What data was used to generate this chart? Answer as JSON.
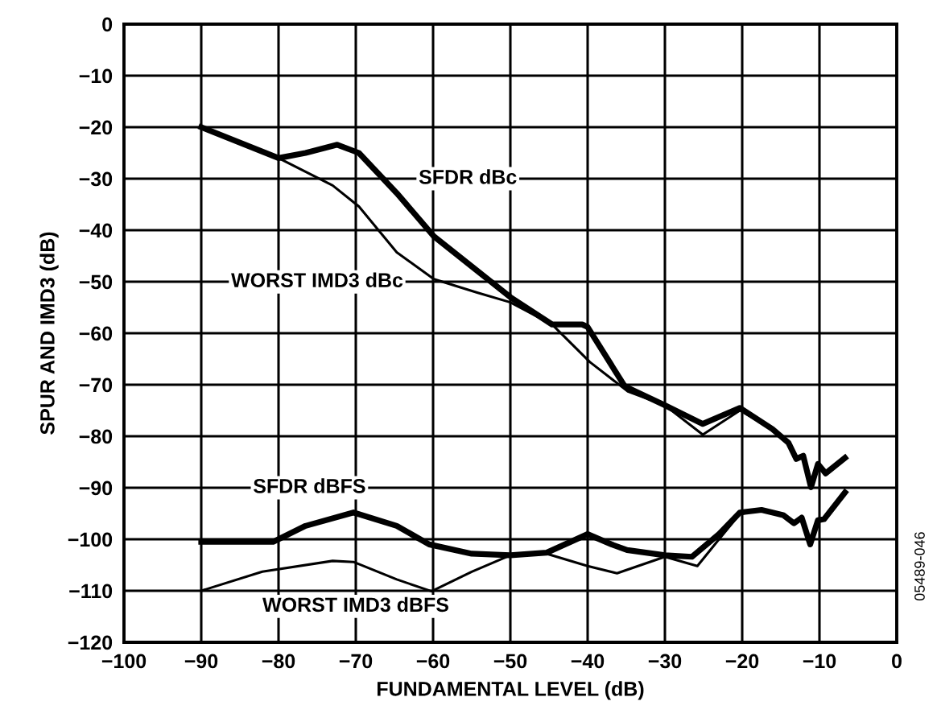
{
  "chart_data": {
    "type": "line",
    "xlabel": "FUNDAMENTAL LEVEL (dB)",
    "ylabel": "SPUR AND IMD3 (dB)",
    "xlim": [
      -100,
      0
    ],
    "ylim": [
      -120,
      0
    ],
    "xticks": [
      {
        "value": -100,
        "label": "−100"
      },
      {
        "value": -90,
        "label": "−90"
      },
      {
        "value": -80,
        "label": "−80"
      },
      {
        "value": -70,
        "label": "−70"
      },
      {
        "value": -60,
        "label": "−60"
      },
      {
        "value": -50,
        "label": "−50"
      },
      {
        "value": -40,
        "label": "−40"
      },
      {
        "value": -30,
        "label": "−30"
      },
      {
        "value": -20,
        "label": "−20"
      },
      {
        "value": -10,
        "label": "−10"
      },
      0
    ],
    "yticks": [
      0,
      {
        "value": -10,
        "label": "−10"
      },
      {
        "value": -20,
        "label": "−20"
      },
      {
        "value": -30,
        "label": "−30"
      },
      {
        "value": -40,
        "label": "−40"
      },
      {
        "value": -50,
        "label": "−50"
      },
      {
        "value": -60,
        "label": "−60"
      },
      {
        "value": -70,
        "label": "−70"
      },
      {
        "value": -80,
        "label": "−80"
      },
      {
        "value": -90,
        "label": "−90"
      },
      {
        "value": -100,
        "label": "−100"
      },
      {
        "value": -110,
        "label": "−110"
      },
      {
        "value": -120,
        "label": "−120"
      }
    ],
    "grid": true,
    "legend": false,
    "marker": "none",
    "line_style": "solid",
    "series": [
      {
        "name": "SFDR dBc",
        "color": "#000000",
        "x": [
          -90,
          -80,
          -76.5,
          -72.4,
          -69.6,
          -64.7,
          -59.9,
          -50,
          -44.6,
          -40.7,
          -40,
          -35.2,
          -30,
          -25.1,
          -20.3,
          -16.1,
          -14,
          -13,
          -12.1,
          -11.1,
          -10.2,
          -9.2,
          -6.7
        ],
        "values": [
          -20,
          -26,
          -25,
          -23.4,
          -25,
          -32.8,
          -41.2,
          -53,
          -58.3,
          -58.3,
          -58.8,
          -70.3,
          -74,
          -77.6,
          -74.5,
          -78.6,
          -81.3,
          -84.4,
          -83.8,
          -89.9,
          -85.4,
          -87.2,
          -84.2
        ]
      },
      {
        "name": "WORST IMD3 dBc",
        "color": "#000000",
        "x": [
          -90,
          -80,
          -73,
          -69.6,
          -64.7,
          -59.9,
          -54.3,
          -50,
          -44.6,
          -39.7,
          -34.8,
          -30,
          -25.1,
          -20.3,
          -16.1,
          -14,
          -13,
          -12.1,
          -11.1,
          -10.2,
          -9.2,
          -6.7
        ],
        "values": [
          -20,
          -26,
          -31.3,
          -35.4,
          -44.3,
          -49.5,
          -52.1,
          -54,
          -58.3,
          -65.6,
          -71.3,
          -74,
          -79.7,
          -75,
          -78.6,
          -81.3,
          -84.4,
          -83.8,
          -89.9,
          -85.4,
          -87.2,
          -84.2
        ]
      },
      {
        "name": "SFDR dBFS",
        "color": "#000000",
        "x": [
          -90,
          -80.7,
          -76.5,
          -70.3,
          -64.7,
          -60.5,
          -55,
          -50,
          -45.3,
          -40,
          -36.9,
          -34.9,
          -30,
          -26.5,
          -23,
          -20.3,
          -17.5,
          -14.7,
          -13.3,
          -12.3,
          -11.2,
          -10.2,
          -9.4,
          -6.7
        ],
        "values": [
          -100.5,
          -100.5,
          -97.4,
          -94.8,
          -97.4,
          -101,
          -102.8,
          -103.1,
          -102.6,
          -99,
          -101,
          -102.1,
          -103.1,
          -103.4,
          -99,
          -94.8,
          -94.3,
          -95.3,
          -96.9,
          -95.8,
          -101,
          -96.3,
          -96.1,
          -90.9
        ]
      },
      {
        "name": "WORST IMD3 dBFS",
        "color": "#000000",
        "x": [
          -90,
          -82.1,
          -73,
          -70.3,
          -64.7,
          -60.2,
          -55,
          -50,
          -45.3,
          -40,
          -36.2,
          -30,
          -25.8,
          -23,
          -20.3,
          -17.5,
          -14.7,
          -13.3,
          -12.3,
          -11.2,
          -10.2,
          -9.4,
          -6.7
        ],
        "values": [
          -110,
          -106.3,
          -104.2,
          -104.4,
          -107.8,
          -110.1,
          -106.3,
          -103.1,
          -102.8,
          -105.2,
          -106.6,
          -103.4,
          -105.2,
          -100,
          -95.1,
          -94.3,
          -95.3,
          -96.9,
          -95.8,
          -101,
          -96.3,
          -96.1,
          -90.9
        ]
      }
    ],
    "annotations": [
      "05489-046"
    ]
  }
}
